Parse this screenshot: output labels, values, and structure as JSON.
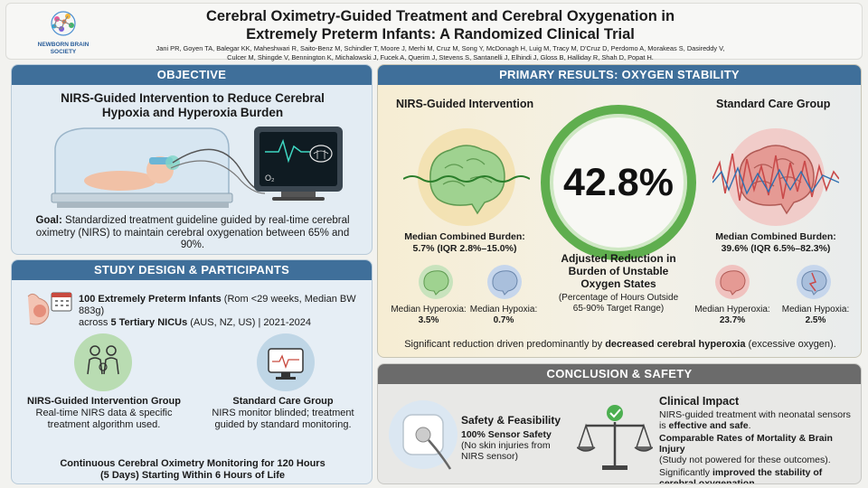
{
  "header": {
    "logo_text": "NEWBORN BRAIN SOCIETY",
    "title_line1": "Cerebral Oximetry-Guided Treatment and Cerebral Oxygenation in",
    "title_line2": "Extremely Preterm Infants: A Randomized Clinical Trial",
    "authors_line1": "Jani PR, Goyen TA, Balegar KK, Maheshwari R, Saito-Benz M, Schindler T, Moore J, Merhi M, Cruz M, Song Y, McDonagh H, Luig M, Tracy M, D'Cruz D, Perdomo A, Morakeas S, Dasireddy V,",
    "authors_line2": "Culcer M, Shingde V, Bennington K, Michalowski J, Fucek A, Querim J, Stevens S, Santanelli J, Elhindi J, Gloss B, Halliday R, Shah D, Popat H."
  },
  "objective": {
    "heading": "OBJECTIVE",
    "subtitle_line1": "NIRS-Guided Intervention to Reduce Cerebral",
    "subtitle_line2": "Hypoxia and Hyperoxia Burden",
    "monitor_label": "O₂",
    "goal_label": "Goal:",
    "goal_text": " Standardized treatment guideline guided by real-time cerebral oximetry (NIRS) to maintain cerebral oxygenation between 65% and 90%."
  },
  "design": {
    "heading": "STUDY DESIGN & PARTICIPANTS",
    "participants_bold": "100 Extremely Preterm Infants",
    "participants_rest": " (Rom <29 weeks, Median BW 883g)",
    "sites_pre": "across ",
    "sites_bold": "5 Tertiary NICUs",
    "sites_rest": " (AUS, NZ, US) | 2021-2024",
    "group1_title": "NIRS-Guided Intervention Group",
    "group1_desc": "Real-time NIRS data & specific treatment algorithm used.",
    "group2_title": "Standard Care Group",
    "group2_desc": "NIRS monitor blinded; treatment guided by standard monitoring.",
    "footer_line1": "Continuous Cerebral Oximetry Monitoring for 120 Hours",
    "footer_line2": "(5 Days) Starting Within 6 Hours of Life"
  },
  "results": {
    "heading": "PRIMARY RESULTS: OXYGEN STABILITY",
    "left_label": "NIRS-Guided Intervention",
    "right_label": "Standard Care Group",
    "big_value": "42.8%",
    "adjusted_line1": "Adjusted Reduction in",
    "adjusted_line2": "Burden of Unstable",
    "adjusted_line3": "Oxygen States",
    "adjusted_sub_line1": "(Percentage of Hours Outside",
    "adjusted_sub_line2": "65-90% Target Range)",
    "left_burden_label": "Median Combined Burden:",
    "left_burden_value": "5.7% (IQR 2.8%–15.0%)",
    "right_burden_label": "Median Combined Burden:",
    "right_burden_value": "39.6% (IQR 6.5%–82.3%)",
    "left_hyperoxia_label": "Median Hyperoxia:",
    "left_hyperoxia_value": "3.5%",
    "left_hypoxia_label": "Median Hypoxia:",
    "left_hypoxia_value": "0.7%",
    "right_hyperoxia_label": "Median Hyperoxia:",
    "right_hyperoxia_value": "23.7%",
    "right_hypoxia_label": "Median Hypoxia:",
    "right_hypoxia_value": "2.5%",
    "footer_pre": "Significant reduction driven predominantly by ",
    "footer_bold": "decreased cerebral hyperoxia",
    "footer_post": " (excessive oxygen).",
    "colors": {
      "green": "#5fae4e",
      "red": "#c94a4a",
      "blue": "#2f6fb0"
    }
  },
  "conclusion": {
    "heading": "CONCLUSION & SAFETY",
    "safety_title": "Safety & Feasibility",
    "safety_bold": "100% Sensor Safety",
    "safety_text": "(No skin injuries from NIRS sensor)",
    "impact_title": "Clinical Impact",
    "impact_p1_pre": "NIRS-guided treatment with neonatal sensors is ",
    "impact_p1_bold": "effective and safe",
    "impact_p1_post": ".",
    "impact_p2_bold": "Comparable Rates of Mortality & Brain Injury",
    "impact_p2_text": "(Study not powered for these outcomes).",
    "impact_p3_pre": "Significantly ",
    "impact_p3_bold": "improved the stability of cerebral oxygenation."
  }
}
